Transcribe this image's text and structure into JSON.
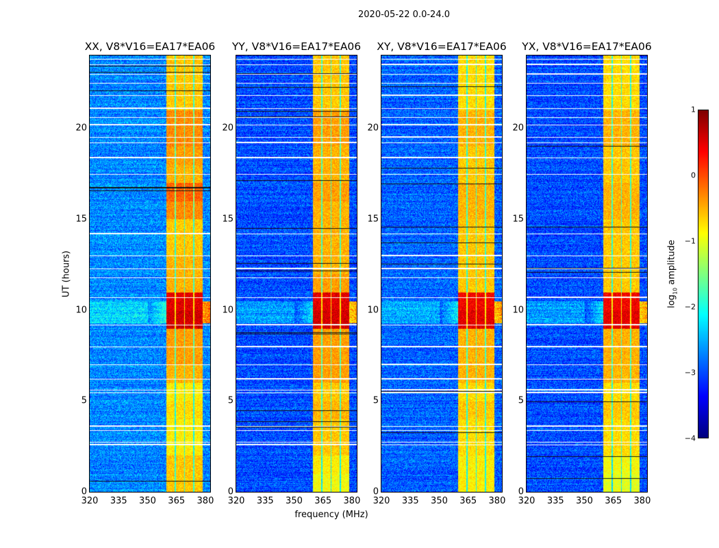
{
  "chart_data": {
    "type": "heatmap",
    "title": "2020-05-22 0.0-24.0",
    "xlabel": "frequency (MHz)",
    "ylabel": "UT (hours)",
    "xlim": [
      320,
      382.5
    ],
    "ylim": [
      0,
      24
    ],
    "xticks": [
      "320",
      "335",
      "350",
      "365",
      "380"
    ],
    "yticks": [
      "0",
      "5",
      "10",
      "15",
      "20"
    ],
    "colorbar": {
      "label_prefix": "log",
      "label_sub": "10",
      "label_suffix": " amplitude",
      "clim": [
        -4,
        1
      ],
      "ticks": [
        "1",
        "0",
        "−1",
        "−2",
        "−3",
        "−4"
      ],
      "cmap": "jet"
    },
    "panels": [
      {
        "title": "XX, V8*V16=EA17*EA06",
        "background": -2.7,
        "band_level_by_hour": [
          -0.6,
          -0.6,
          -0.8,
          -0.8,
          -0.7,
          -0.8,
          -0.5,
          -0.4,
          -0.4,
          0.6,
          0.5,
          -0.5,
          -0.5,
          -0.6,
          -0.6,
          -0.3,
          -0.1,
          -0.5,
          -0.4,
          -0.3,
          -0.3,
          -0.6,
          -0.6,
          -0.6
        ]
      },
      {
        "title": "YY, V8*V16=EA17*EA06",
        "background": -3.0,
        "band_level_by_hour": [
          -0.9,
          -0.8,
          -0.6,
          -0.6,
          -0.5,
          -0.6,
          -0.4,
          -0.4,
          -0.4,
          0.6,
          0.5,
          -0.4,
          -0.5,
          -0.5,
          -0.5,
          -0.5,
          -0.4,
          -0.5,
          -0.5,
          -0.4,
          -0.4,
          -0.6,
          -0.6,
          -0.6
        ]
      },
      {
        "title": "XY, V8*V16=EA17*EA06",
        "background": -2.9,
        "band_level_by_hour": [
          -0.8,
          -0.8,
          -0.7,
          -0.7,
          -0.6,
          -0.7,
          -0.5,
          -0.5,
          -0.5,
          0.5,
          0.4,
          -0.6,
          -0.6,
          -0.6,
          -0.6,
          -0.5,
          -0.5,
          -0.6,
          -0.6,
          -0.5,
          -0.5,
          -0.7,
          -0.7,
          -0.7
        ]
      },
      {
        "title": "YX, V8*V16=EA17*EA06",
        "background": -3.0,
        "band_level_by_hour": [
          -1.0,
          -0.9,
          -0.7,
          -0.7,
          -0.6,
          -0.7,
          -0.5,
          -0.5,
          -0.5,
          0.5,
          0.4,
          -0.6,
          -0.6,
          -0.6,
          -0.6,
          -0.5,
          -0.5,
          -0.6,
          -0.6,
          -0.5,
          -0.5,
          -0.7,
          -0.7,
          -0.7
        ]
      }
    ],
    "band_segments_mhz": [
      [
        359.6,
        364.0
      ],
      [
        364.7,
        368.7
      ],
      [
        369.3,
        373.5
      ],
      [
        374.2,
        378.5
      ]
    ],
    "flagged_ut_hours": [
      2.6,
      2.75,
      3.4,
      3.6,
      5.45,
      5.6,
      6.2,
      7.0,
      8.0,
      9.2,
      10.7,
      11.8,
      12.3,
      13.0,
      14.2,
      17.5,
      18.4,
      19.2,
      19.5,
      20.2,
      20.6,
      21.1,
      21.8,
      22.5,
      23.0,
      23.5,
      23.8
    ]
  }
}
